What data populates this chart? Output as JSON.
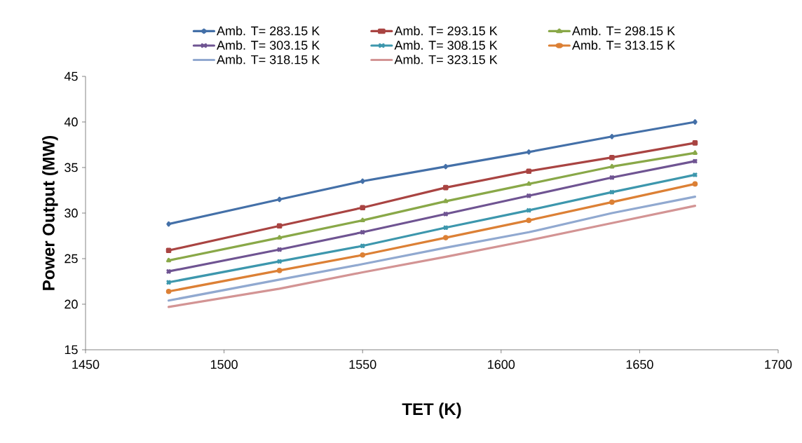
{
  "chart_data": {
    "type": "line",
    "xlabel": "TET (K)",
    "ylabel": "Power Output (MW)",
    "x": [
      1480,
      1520,
      1550,
      1580,
      1610,
      1640,
      1670
    ],
    "series": [
      {
        "name": "Amb. T= 283.15 K",
        "color": "#4470a8",
        "marker": "diamond",
        "values": [
          28.8,
          31.5,
          33.5,
          35.1,
          36.7,
          38.4,
          40.0
        ]
      },
      {
        "name": "Amb. T= 293.15 K",
        "color": "#a94442",
        "marker": "square",
        "values": [
          25.9,
          28.6,
          30.6,
          32.8,
          34.6,
          36.1,
          37.7
        ]
      },
      {
        "name": "Amb. T= 298.15 K",
        "color": "#89a848",
        "marker": "triangle",
        "values": [
          24.8,
          27.3,
          29.2,
          31.3,
          33.2,
          35.1,
          36.6
        ]
      },
      {
        "name": "Amb. T= 303.15 K",
        "color": "#6f5492",
        "marker": "cross",
        "values": [
          23.6,
          26.0,
          27.9,
          29.9,
          31.9,
          33.9,
          35.7
        ]
      },
      {
        "name": "Amb. T= 308.15 K",
        "color": "#3d97ad",
        "marker": "cross",
        "values": [
          22.4,
          24.7,
          26.4,
          28.4,
          30.3,
          32.3,
          34.2
        ]
      },
      {
        "name": "Amb. T= 313.15 K",
        "color": "#dc8035",
        "marker": "circle",
        "values": [
          21.4,
          23.7,
          25.4,
          27.3,
          29.2,
          31.2,
          33.2
        ]
      },
      {
        "name": "Amb. T= 318.15 K",
        "color": "#91a9d0",
        "marker": "none",
        "values": [
          20.4,
          22.7,
          24.4,
          26.2,
          27.9,
          30.0,
          31.8
        ]
      },
      {
        "name": "Amb. T= 323.15 K",
        "color": "#d39494",
        "marker": "none",
        "values": [
          19.7,
          21.7,
          23.5,
          25.2,
          27.0,
          28.9,
          30.8
        ]
      }
    ],
    "xlim": [
      1450,
      1700
    ],
    "xticks": [
      1450,
      1500,
      1550,
      1600,
      1650,
      1700
    ],
    "ylim": [
      15,
      45
    ],
    "yticks": [
      15,
      20,
      25,
      30,
      35,
      40,
      45
    ],
    "grid": false,
    "legend": "top",
    "line_style": "solid"
  }
}
